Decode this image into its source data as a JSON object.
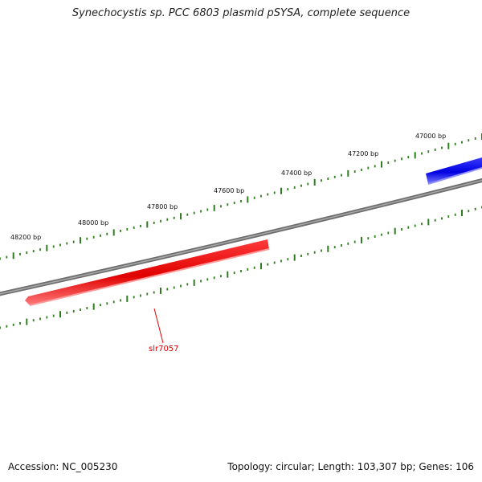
{
  "title": "Synechocystis sp. PCC 6803 plasmid pSYSA, complete sequence",
  "footer": {
    "accession": "Accession: NC_005230",
    "info": "Topology: circular; Length: 103,307 bp; Genes: 106"
  },
  "tick_labels": [
    "47000 bp",
    "47200 bp",
    "47400 bp",
    "47600 bp",
    "47800 bp",
    "48000 bp",
    "48200 bp"
  ],
  "genes": [
    {
      "label": "slr7057",
      "color": "#ff0000"
    },
    {
      "label": "",
      "color": "#0000ff"
    }
  ],
  "colors": {
    "backbone": "#808080",
    "ticks": "#2e7d1e"
  }
}
